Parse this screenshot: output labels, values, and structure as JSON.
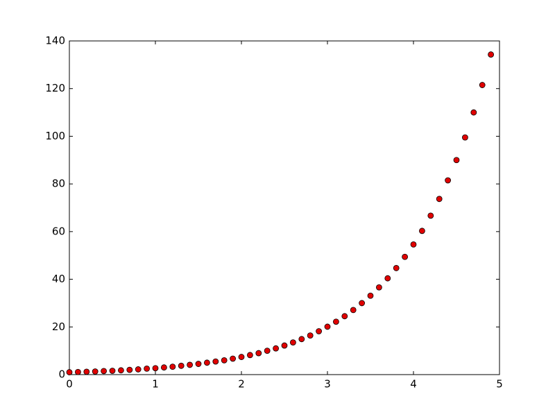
{
  "chart_data": {
    "type": "scatter",
    "x": [
      0,
      0.1,
      0.2,
      0.3,
      0.4,
      0.5,
      0.6,
      0.7,
      0.8,
      0.9,
      1,
      1.1,
      1.2,
      1.3,
      1.4,
      1.5,
      1.6,
      1.7,
      1.8,
      1.9,
      2,
      2.1,
      2.2,
      2.3,
      2.4,
      2.5,
      2.6,
      2.7,
      2.8,
      2.9,
      3,
      3.1,
      3.2,
      3.3,
      3.4,
      3.5,
      3.6,
      3.7,
      3.8,
      3.9,
      4,
      4.1,
      4.2,
      4.3,
      4.4,
      4.5,
      4.6,
      4.7,
      4.8,
      4.9
    ],
    "values": [
      1.0,
      1.1,
      1.2,
      1.3,
      1.5,
      1.6,
      1.8,
      2.0,
      2.2,
      2.5,
      2.7,
      3.0,
      3.3,
      3.7,
      4.1,
      4.5,
      5.0,
      5.5,
      6.0,
      6.7,
      7.4,
      8.2,
      9.0,
      10.0,
      11.0,
      12.2,
      13.5,
      14.9,
      16.4,
      18.2,
      20.1,
      22.2,
      24.5,
      27.1,
      30.0,
      33.1,
      36.6,
      40.4,
      44.7,
      49.4,
      54.6,
      60.3,
      66.7,
      73.7,
      81.5,
      90.0,
      99.5,
      110.0,
      121.5,
      134.3
    ],
    "color": "#e00000",
    "xlim": [
      0,
      5
    ],
    "xticks": [
      0,
      1,
      2,
      3,
      4,
      5
    ],
    "ylim": [
      0,
      140
    ],
    "yticks": [
      0,
      20,
      40,
      60,
      80,
      100,
      120,
      140
    ]
  }
}
